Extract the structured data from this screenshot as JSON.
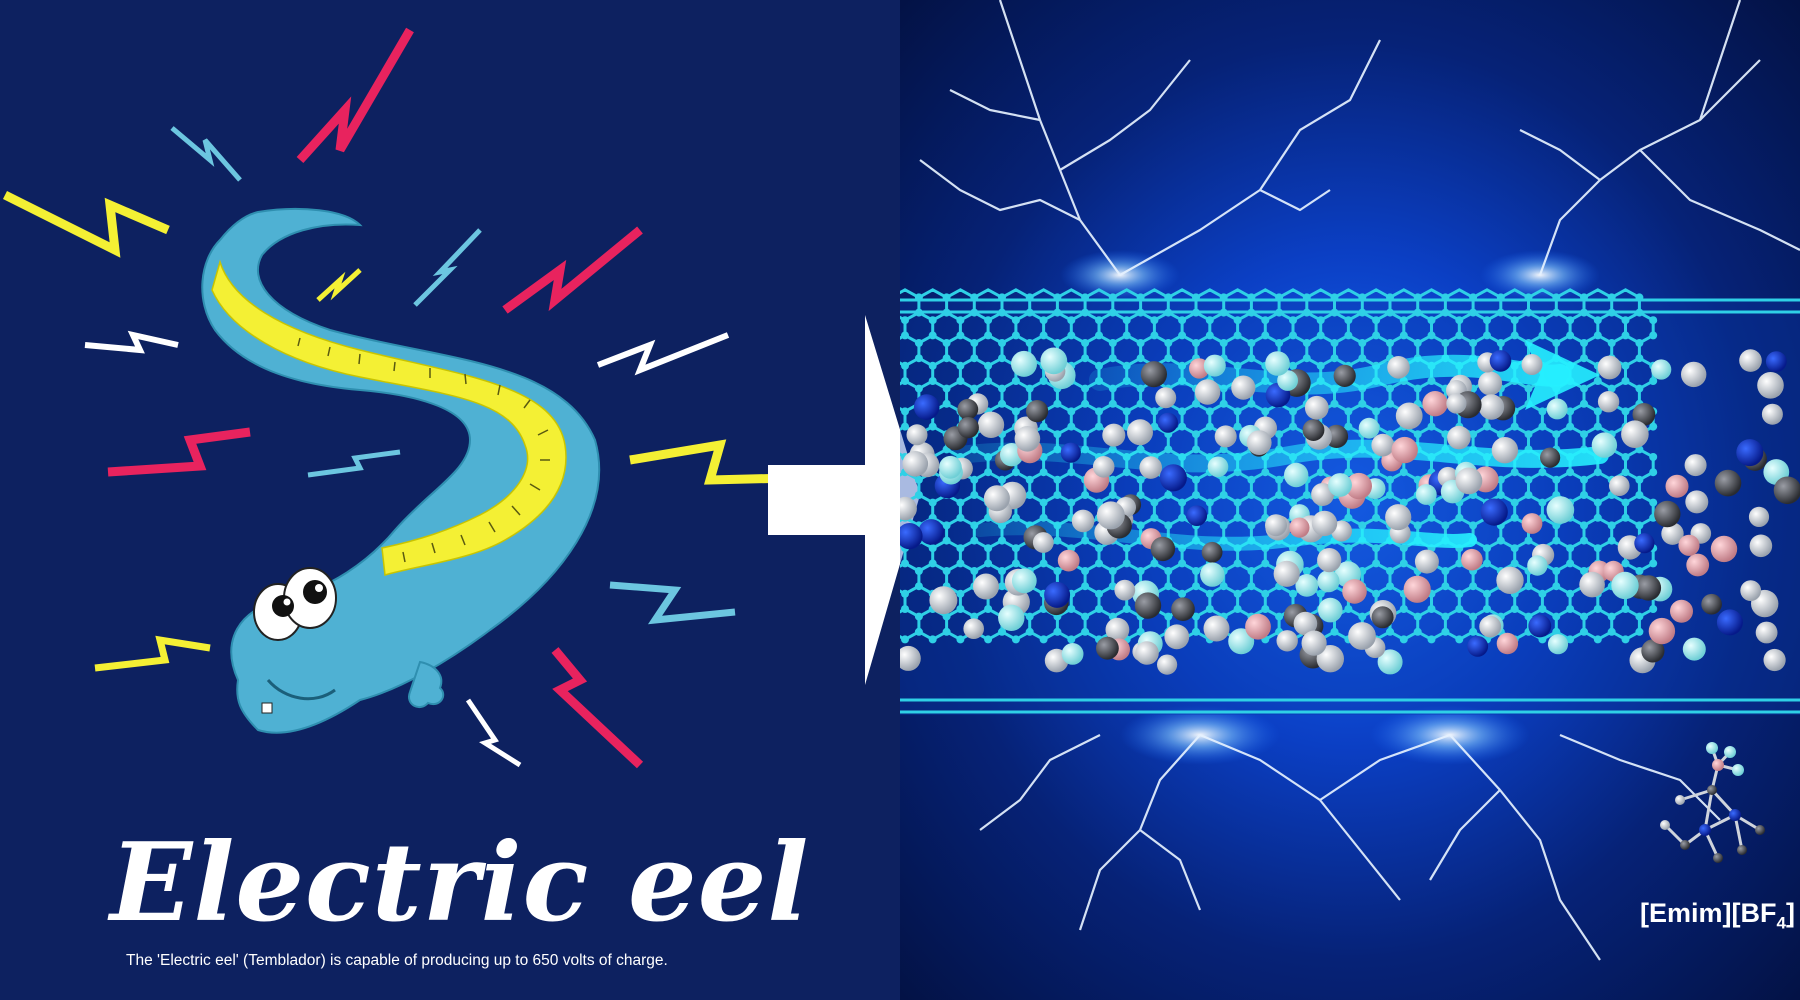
{
  "left_panel": {
    "title": "Electric eel",
    "caption": "The 'Electric eel' (Temblador) is capable of producing up to 650 volts of charge."
  },
  "right_panel": {
    "molecule_label": {
      "cation": "[Emim]",
      "anion_prefix": "[BF",
      "anion_subscript": "4",
      "anion_suffix": "]"
    }
  },
  "colors": {
    "left_background": "#0d2160",
    "eel_body": "#4fb1d3",
    "eel_stripe": "#f4f034",
    "bolt_magenta": "#e8235e",
    "bolt_yellow": "#f4f034",
    "bolt_white": "#ffffff",
    "bolt_lightblue": "#6cc6e0",
    "arrow": "#ffffff",
    "nanotube": "#2fd0e6",
    "flow_arrows": "#26f0ff",
    "atom_white": "#e4e8ee",
    "atom_grey": "#4a4d55",
    "atom_blue": "#0b2fd0",
    "atom_pink": "#e0a0a8",
    "atom_cyan": "#a8eef2"
  },
  "icons": [
    "electric-eel-illustration",
    "lightning-bolt-icon",
    "right-arrow-icon",
    "carbon-nanotube",
    "emim-bf4-molecule-icon"
  ]
}
